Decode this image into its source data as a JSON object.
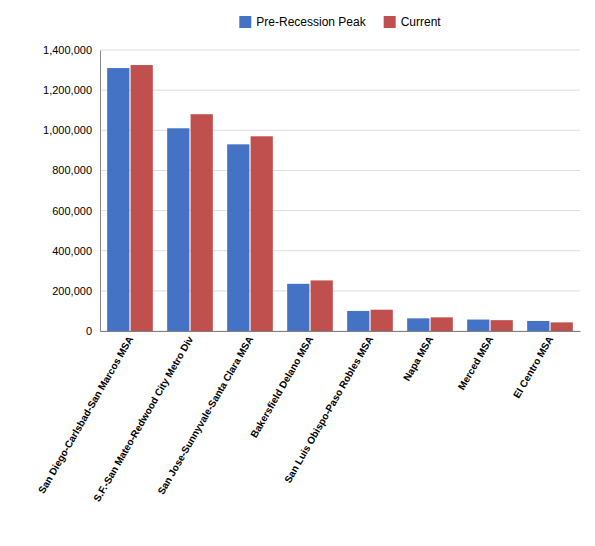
{
  "chart_data": {
    "type": "bar",
    "categories": [
      "San Diego-Carlsbad-San Marcos MSA",
      "S.F.-San Mateo-Redwood City Metro Div",
      "San Jose-Sunnyvale-Santa Clara MSA",
      "Bakersfield Delano MSA",
      "San Luis Obispo-Paso Robles MSA",
      "Napa MSA",
      "Merced MSA",
      "El Centro MSA"
    ],
    "series": [
      {
        "name": "Pre-Recession Peak",
        "color": "#4472C4",
        "values": [
          1310000,
          1010000,
          930000,
          235000,
          100000,
          63000,
          57000,
          50000
        ]
      },
      {
        "name": "Current",
        "color": "#C0504D",
        "values": [
          1325000,
          1080000,
          970000,
          252000,
          106000,
          68000,
          54000,
          43000
        ]
      }
    ],
    "ylim": [
      0,
      1400000
    ],
    "yticks": [
      0,
      {
        "value": 200000,
        "label": "200,000"
      },
      {
        "value": 400000,
        "label": "400,000"
      },
      {
        "value": 600000,
        "label": "600,000"
      },
      {
        "value": 800000,
        "label": "800,000"
      },
      {
        "value": 1000000,
        "label": "1,000,000"
      },
      {
        "value": 1200000,
        "label": "1,200,000"
      },
      {
        "value": 1400000,
        "label": "1,400,000"
      }
    ],
    "grid": true,
    "legend": "top"
  }
}
